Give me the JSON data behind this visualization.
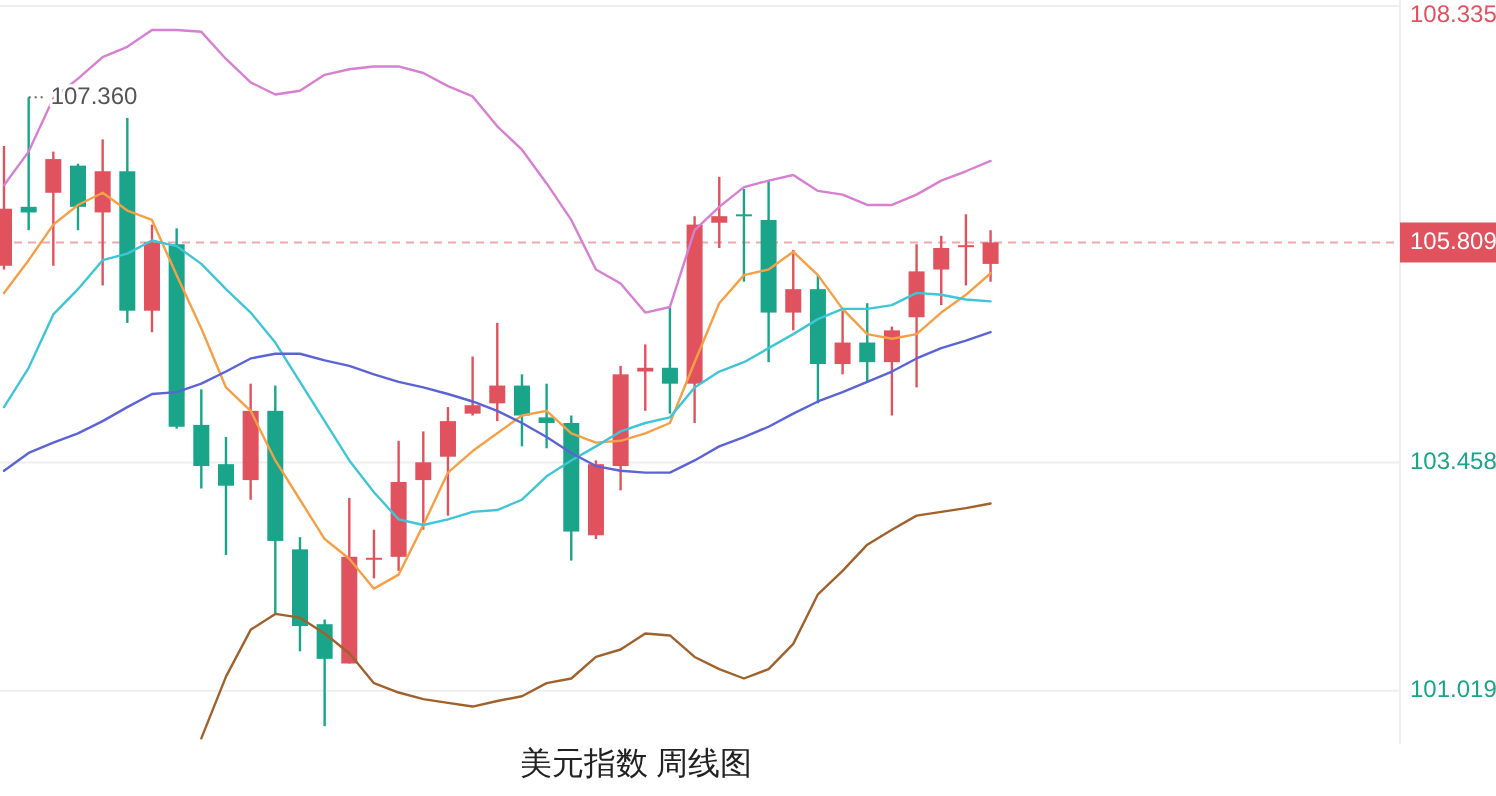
{
  "chart_data": {
    "type": "candlestick",
    "title": "美元指数 周线图",
    "categories": [
      null,
      null,
      null,
      null,
      null,
      null,
      null,
      null,
      null,
      null,
      null,
      null,
      null,
      null,
      null,
      null,
      null,
      null,
      null,
      null,
      null,
      null,
      null,
      null,
      null,
      null,
      null,
      null,
      null,
      null,
      null,
      null,
      null,
      null,
      null,
      null,
      null,
      null,
      null,
      null,
      null
    ],
    "ohlc": [
      [
        105.56,
        106.84,
        105.52,
        106.17
      ],
      [
        106.19,
        107.36,
        105.94,
        106.13
      ],
      [
        106.34,
        106.78,
        105.56,
        106.7
      ],
      [
        106.63,
        106.65,
        105.94,
        106.19
      ],
      [
        106.13,
        106.91,
        105.35,
        106.57
      ],
      [
        106.57,
        107.14,
        104.95,
        105.08
      ],
      [
        105.08,
        106.0,
        104.85,
        105.81
      ],
      [
        105.79,
        105.96,
        103.82,
        103.84
      ],
      [
        103.86,
        104.24,
        103.18,
        103.42
      ],
      [
        103.44,
        103.73,
        102.47,
        103.21
      ],
      [
        103.27,
        104.3,
        103.06,
        104.01
      ],
      [
        104.01,
        104.28,
        101.84,
        102.62
      ],
      [
        102.53,
        102.66,
        101.44,
        101.71
      ],
      [
        101.73,
        101.78,
        100.64,
        101.36
      ],
      [
        101.31,
        103.08,
        101.31,
        102.45
      ],
      [
        102.42,
        102.74,
        102.22,
        102.44
      ],
      [
        102.45,
        103.69,
        102.3,
        103.25
      ],
      [
        103.27,
        103.79,
        102.74,
        103.46
      ],
      [
        103.52,
        104.05,
        102.89,
        103.9
      ],
      [
        103.98,
        104.59,
        103.96,
        104.07
      ],
      [
        104.09,
        104.95,
        103.9,
        104.28
      ],
      [
        104.28,
        104.4,
        103.63,
        103.96
      ],
      [
        103.94,
        104.3,
        103.61,
        103.88
      ],
      [
        103.88,
        103.96,
        102.41,
        102.72
      ],
      [
        102.68,
        103.48,
        102.64,
        103.44
      ],
      [
        103.42,
        104.49,
        103.16,
        104.4
      ],
      [
        104.43,
        104.72,
        104.01,
        104.47
      ],
      [
        104.47,
        105.12,
        103.98,
        104.3
      ],
      [
        104.3,
        106.09,
        103.88,
        106.0
      ],
      [
        106.02,
        106.51,
        105.75,
        106.09
      ],
      [
        106.11,
        106.38,
        105.39,
        106.09
      ],
      [
        106.05,
        106.47,
        104.53,
        105.06
      ],
      [
        105.06,
        105.73,
        104.87,
        105.31
      ],
      [
        105.31,
        105.46,
        104.09,
        104.51
      ],
      [
        104.51,
        105.08,
        104.4,
        104.74
      ],
      [
        104.74,
        105.16,
        104.32,
        104.53
      ],
      [
        104.53,
        104.91,
        103.96,
        104.87
      ],
      [
        105.01,
        105.79,
        104.26,
        105.5
      ],
      [
        105.52,
        105.88,
        105.14,
        105.75
      ],
      [
        105.76,
        106.11,
        105.35,
        105.78
      ],
      [
        105.58,
        105.94,
        105.39,
        105.809
      ]
    ],
    "colors": [
      "#e0525e",
      "#1aa58a",
      "#e0525e",
      "#1aa58a",
      "#e0525e",
      "#1aa58a",
      "#e0525e",
      "#1aa58a",
      "#1aa58a",
      "#1aa58a",
      "#e0525e",
      "#1aa58a",
      "#1aa58a",
      "#1aa58a",
      "#e0525e",
      "#e0525e",
      "#e0525e",
      "#e0525e",
      "#e0525e",
      "#e0525e",
      "#e0525e",
      "#1aa58a",
      "#1aa58a",
      "#1aa58a",
      "#e0525e",
      "#e0525e",
      "#e0525e",
      "#1aa58a",
      "#e0525e",
      "#e0525e",
      "#1aa58a",
      "#1aa58a",
      "#e0525e",
      "#1aa58a",
      "#e0525e",
      "#1aa58a",
      "#e0525e",
      "#e0525e",
      "#e0525e",
      "#e0525e",
      "#e0525e"
    ],
    "series": [
      {
        "type": "line",
        "color": "#d77fd0",
        "values": [
          106.42,
          106.78,
          107.35,
          107.56,
          107.79,
          107.9,
          108.08,
          108.08,
          108.06,
          107.77,
          107.52,
          107.39,
          107.43,
          107.6,
          107.66,
          107.69,
          107.69,
          107.62,
          107.48,
          107.37,
          107.05,
          106.8,
          106.44,
          106.05,
          105.52,
          105.37,
          105.06,
          105.12,
          105.94,
          106.19,
          106.4,
          106.47,
          106.53,
          106.36,
          106.32,
          106.21,
          106.21,
          106.32,
          106.47,
          106.57,
          106.68
        ]
      },
      {
        "type": "line",
        "color": "#f5a046",
        "values": [
          105.27,
          105.62,
          106.0,
          106.21,
          106.34,
          106.15,
          106.05,
          105.46,
          104.89,
          104.26,
          104.01,
          103.48,
          103.06,
          102.64,
          102.43,
          102.11,
          102.26,
          102.79,
          103.35,
          103.58,
          103.77,
          103.96,
          104.01,
          103.77,
          103.67,
          103.69,
          103.77,
          103.88,
          104.53,
          105.16,
          105.46,
          105.52,
          105.71,
          105.46,
          105.1,
          104.83,
          104.78,
          104.83,
          105.06,
          105.25,
          105.48
        ]
      },
      {
        "type": "line",
        "color": "#3fc6d6",
        "values": [
          104.05,
          104.47,
          105.04,
          105.31,
          105.62,
          105.69,
          105.83,
          105.77,
          105.58,
          105.31,
          105.06,
          104.74,
          104.32,
          103.9,
          103.48,
          103.14,
          102.85,
          102.79,
          102.85,
          102.93,
          102.95,
          103.06,
          103.31,
          103.48,
          103.63,
          103.79,
          103.88,
          103.94,
          104.26,
          104.43,
          104.53,
          104.68,
          104.83,
          104.99,
          105.1,
          105.1,
          105.14,
          105.27,
          105.25,
          105.2,
          105.18
        ]
      },
      {
        "type": "line",
        "color": "#5b63d6",
        "values": [
          103.37,
          103.56,
          103.67,
          103.77,
          103.9,
          104.05,
          104.19,
          104.21,
          104.3,
          104.43,
          104.57,
          104.62,
          104.62,
          104.55,
          104.49,
          104.4,
          104.32,
          104.26,
          104.19,
          104.11,
          104.01,
          103.88,
          103.73,
          103.56,
          103.42,
          103.37,
          103.35,
          103.35,
          103.48,
          103.63,
          103.73,
          103.84,
          103.98,
          104.11,
          104.21,
          104.32,
          104.43,
          104.57,
          104.68,
          104.76,
          104.85
        ]
      },
      {
        "type": "line",
        "color": "#a0622d",
        "values": [
          null,
          null,
          null,
          null,
          null,
          null,
          null,
          null,
          100.51,
          101.17,
          101.67,
          101.84,
          101.8,
          101.63,
          101.42,
          101.1,
          101.0,
          100.93,
          100.89,
          100.85,
          100.91,
          100.96,
          101.1,
          101.15,
          101.38,
          101.46,
          101.63,
          101.61,
          101.38,
          101.25,
          101.15,
          101.25,
          101.52,
          102.05,
          102.3,
          102.58,
          102.74,
          102.89,
          102.93,
          102.97,
          103.02
        ]
      }
    ],
    "ylim": [
      100.45,
      108.4
    ],
    "yticks": [
      108.335,
      103.458,
      101.019
    ],
    "grid": "y",
    "tick_labels": "y",
    "ref_lines": [
      {
        "axis": "y",
        "value": 105.809,
        "label": "105.809",
        "color": "#e0525e",
        "line_style": "dashed"
      }
    ],
    "annotations": [
      "107.360"
    ]
  }
}
